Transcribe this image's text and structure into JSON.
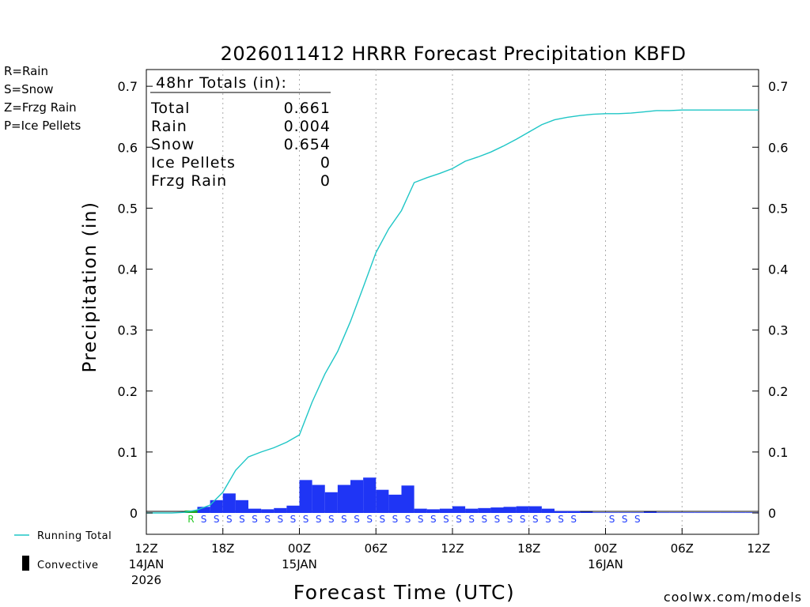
{
  "chart_data": {
    "type": "bar",
    "title": "2026011412 HRRR Forecast Precipitation KBFD",
    "xlabel": "Forecast Time (UTC)",
    "ylabel": "Precipitation (in)",
    "ylim": [
      -0.035,
      0.7274
    ],
    "y_ticks": [
      "0",
      "0.1",
      "0.2",
      "0.3",
      "0.4",
      "0.5",
      "0.6",
      "0.7"
    ],
    "x_ticks": [
      {
        "hour": 0,
        "label": "12Z",
        "sub1": "14JAN",
        "sub2": "2026"
      },
      {
        "hour": 6,
        "label": "18Z",
        "sub1": "",
        "sub2": ""
      },
      {
        "hour": 12,
        "label": "00Z",
        "sub1": "15JAN",
        "sub2": ""
      },
      {
        "hour": 18,
        "label": "06Z",
        "sub1": "",
        "sub2": ""
      },
      {
        "hour": 24,
        "label": "12Z",
        "sub1": "",
        "sub2": ""
      },
      {
        "hour": 30,
        "label": "18Z",
        "sub1": "",
        "sub2": ""
      },
      {
        "hour": 36,
        "label": "00Z",
        "sub1": "16JAN",
        "sub2": ""
      },
      {
        "hour": 42,
        "label": "06Z",
        "sub1": "",
        "sub2": ""
      },
      {
        "hour": 48,
        "label": "12Z",
        "sub1": "",
        "sub2": ""
      }
    ],
    "hourly_precip": [
      0,
      0,
      0,
      0.004,
      0.01,
      0.021,
      0.032,
      0.021,
      0.007,
      0.006,
      0.008,
      0.012,
      0.054,
      0.046,
      0.034,
      0.046,
      0.054,
      0.058,
      0.038,
      0.03,
      0.045,
      0.007,
      0.006,
      0.007,
      0.011,
      0.007,
      0.008,
      0.009,
      0.01,
      0.011,
      0.011,
      0.007,
      0.003,
      0.003,
      0.002,
      0.001,
      0.001,
      0.001,
      0.001,
      0.002,
      0.001,
      0.001,
      0.001,
      0.001,
      0.001,
      0.001,
      0.001,
      0.001
    ],
    "hourly_type": [
      "",
      "",
      "",
      "R",
      "S",
      "S",
      "S",
      "S",
      "S",
      "S",
      "S",
      "S",
      "S",
      "S",
      "S",
      "S",
      "S",
      "S",
      "S",
      "S",
      "S",
      "S",
      "S",
      "S",
      "S",
      "S",
      "S",
      "S",
      "S",
      "S",
      "S",
      "S",
      "S",
      "S",
      "",
      "",
      "S",
      "S",
      "S",
      "",
      "",
      "",
      "",
      "",
      "",
      "",
      "",
      ""
    ],
    "running_total": {
      "name": "Running Total",
      "values": [
        0,
        0,
        0,
        0.001,
        0.005,
        0.013,
        0.034,
        0.07,
        0.092,
        0.1,
        0.107,
        0.116,
        0.128,
        0.182,
        0.228,
        0.265,
        0.314,
        0.37,
        0.427,
        0.466,
        0.496,
        0.542,
        0.55,
        0.557,
        0.565,
        0.577,
        0.584,
        0.592,
        0.602,
        0.613,
        0.625,
        0.637,
        0.645,
        0.649,
        0.652,
        0.654,
        0.655,
        0.655,
        0.656,
        0.658,
        0.66,
        0.66,
        0.661,
        0.661,
        0.661,
        0.661,
        0.661,
        0.661,
        0.661
      ],
      "color": "#1fc6c6"
    },
    "colors": {
      "rain": "#1fc81f",
      "snow": "#1f3cff",
      "frzg_rain": "#f0882a",
      "ice_pellets": "#e0209a",
      "bar": "#1f35f5",
      "bar_rain": "#1fa51f",
      "grid": "#aaaaaa",
      "credit": "#d01040"
    }
  },
  "legend": {
    "rain": "R=Rain",
    "snow": "S=Snow",
    "frzg_rain": "Z=Frzg Rain",
    "ice_pellets": "P=Ice Pellets",
    "running_total": "Running Total",
    "convective": "Convective"
  },
  "totals": {
    "header": "48hr Totals (in):",
    "rows": [
      {
        "label": "Total",
        "value": "0.661"
      },
      {
        "label": "Rain",
        "value": "0.004"
      },
      {
        "label": "Snow",
        "value": "0.654"
      },
      {
        "label": "Ice Pellets",
        "value": "0"
      },
      {
        "label": "Frzg Rain",
        "value": "0"
      }
    ]
  },
  "credit": "coolwx.com/models"
}
